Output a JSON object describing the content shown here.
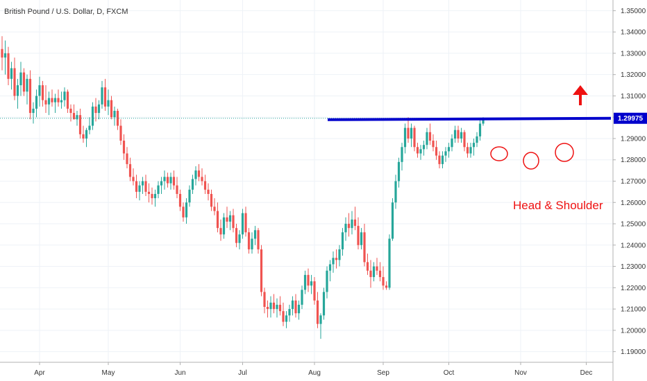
{
  "title": "British Pound / U.S. Dollar, D, FXCM",
  "annotation": "Head & Shoulder",
  "price_tag": "1.29975",
  "colors": {
    "up": "#26a69a",
    "down": "#ef5350",
    "grid": "#eef2f7",
    "neckline": "#0000cc",
    "annotation": "#ee1111",
    "price_tag_bg": "#0000cc",
    "axis_text": "#333333"
  },
  "chart_data": {
    "type": "candlestick",
    "title": "British Pound / U.S. Dollar, D, FXCM",
    "ylim": [
      1.185,
      1.355
    ],
    "y_ticks": [
      "1.19000",
      "1.20000",
      "1.21000",
      "1.22000",
      "1.23000",
      "1.24000",
      "1.25000",
      "1.26000",
      "1.27000",
      "1.28000",
      "1.29000",
      "1.30000",
      "1.31000",
      "1.32000",
      "1.33000",
      "1.34000",
      "1.35000"
    ],
    "x_ticks": [
      {
        "label": "Apr",
        "index": 12
      },
      {
        "label": "May",
        "index": 34
      },
      {
        "label": "Jun",
        "index": 57
      },
      {
        "label": "Jul",
        "index": 77
      },
      {
        "label": "Aug",
        "index": 100
      },
      {
        "label": "Sep",
        "index": 122
      },
      {
        "label": "Oct",
        "index": 143
      },
      {
        "label": "Nov",
        "index": 166
      },
      {
        "label": "Dec",
        "index": 187
      }
    ],
    "candles": [
      [
        1.332,
        1.338,
        1.322,
        1.328
      ],
      [
        1.328,
        1.336,
        1.32,
        1.33
      ],
      [
        1.33,
        1.333,
        1.315,
        1.318
      ],
      [
        1.318,
        1.326,
        1.313,
        1.323
      ],
      [
        1.323,
        1.328,
        1.308,
        1.31
      ],
      [
        1.31,
        1.318,
        1.304,
        1.315
      ],
      [
        1.315,
        1.326,
        1.31,
        1.321
      ],
      [
        1.321,
        1.323,
        1.31,
        1.312
      ],
      [
        1.312,
        1.32,
        1.306,
        1.318
      ],
      [
        1.318,
        1.322,
        1.299,
        1.302
      ],
      [
        1.302,
        1.307,
        1.297,
        1.304
      ],
      [
        1.304,
        1.313,
        1.3,
        1.31
      ],
      [
        1.31,
        1.319,
        1.305,
        1.315
      ],
      [
        1.315,
        1.317,
        1.305,
        1.308
      ],
      [
        1.308,
        1.315,
        1.302,
        1.306
      ],
      [
        1.306,
        1.312,
        1.301,
        1.309
      ],
      [
        1.309,
        1.313,
        1.305,
        1.307
      ],
      [
        1.307,
        1.311,
        1.302,
        1.309
      ],
      [
        1.309,
        1.313,
        1.305,
        1.307
      ],
      [
        1.307,
        1.312,
        1.304,
        1.308
      ],
      [
        1.308,
        1.314,
        1.305,
        1.312
      ],
      [
        1.312,
        1.313,
        1.302,
        1.304
      ],
      [
        1.304,
        1.306,
        1.298,
        1.302
      ],
      [
        1.302,
        1.306,
        1.299,
        1.299
      ],
      [
        1.299,
        1.303,
        1.296,
        1.301
      ],
      [
        1.301,
        1.304,
        1.29,
        1.292
      ],
      [
        1.292,
        1.296,
        1.288,
        1.29
      ],
      [
        1.29,
        1.295,
        1.286,
        1.294
      ],
      [
        1.294,
        1.3,
        1.292,
        1.296
      ],
      [
        1.296,
        1.307,
        1.294,
        1.305
      ],
      [
        1.305,
        1.309,
        1.298,
        1.302
      ],
      [
        1.302,
        1.308,
        1.299,
        1.306
      ],
      [
        1.306,
        1.317,
        1.304,
        1.314
      ],
      [
        1.314,
        1.318,
        1.303,
        1.305
      ],
      [
        1.305,
        1.313,
        1.301,
        1.308
      ],
      [
        1.308,
        1.31,
        1.299,
        1.3
      ],
      [
        1.3,
        1.305,
        1.296,
        1.303
      ],
      [
        1.303,
        1.304,
        1.294,
        1.296
      ],
      [
        1.296,
        1.299,
        1.287,
        1.289
      ],
      [
        1.289,
        1.292,
        1.28,
        1.283
      ],
      [
        1.283,
        1.286,
        1.276,
        1.278
      ],
      [
        1.278,
        1.281,
        1.27,
        1.272
      ],
      [
        1.272,
        1.276,
        1.268,
        1.27
      ],
      [
        1.27,
        1.273,
        1.262,
        1.265
      ],
      [
        1.265,
        1.27,
        1.261,
        1.268
      ],
      [
        1.268,
        1.272,
        1.264,
        1.27
      ],
      [
        1.27,
        1.273,
        1.263,
        1.265
      ],
      [
        1.265,
        1.269,
        1.26,
        1.264
      ],
      [
        1.264,
        1.267,
        1.259,
        1.262
      ],
      [
        1.262,
        1.266,
        1.258,
        1.264
      ],
      [
        1.264,
        1.27,
        1.262,
        1.268
      ],
      [
        1.268,
        1.272,
        1.264,
        1.27
      ],
      [
        1.27,
        1.275,
        1.266,
        1.272
      ],
      [
        1.272,
        1.274,
        1.267,
        1.269
      ],
      [
        1.269,
        1.274,
        1.266,
        1.272
      ],
      [
        1.272,
        1.275,
        1.266,
        1.268
      ],
      [
        1.268,
        1.272,
        1.262,
        1.264
      ],
      [
        1.264,
        1.266,
        1.256,
        1.258
      ],
      [
        1.258,
        1.26,
        1.251,
        1.253
      ],
      [
        1.253,
        1.262,
        1.25,
        1.26
      ],
      [
        1.26,
        1.268,
        1.258,
        1.266
      ],
      [
        1.266,
        1.273,
        1.264,
        1.271
      ],
      [
        1.271,
        1.277,
        1.268,
        1.275
      ],
      [
        1.275,
        1.278,
        1.27,
        1.272
      ],
      [
        1.272,
        1.276,
        1.268,
        1.27
      ],
      [
        1.27,
        1.273,
        1.264,
        1.266
      ],
      [
        1.266,
        1.269,
        1.261,
        1.264
      ],
      [
        1.264,
        1.266,
        1.256,
        1.258
      ],
      [
        1.258,
        1.262,
        1.254,
        1.256
      ],
      [
        1.256,
        1.26,
        1.246,
        1.248
      ],
      [
        1.248,
        1.252,
        1.242,
        1.245
      ],
      [
        1.245,
        1.255,
        1.243,
        1.253
      ],
      [
        1.253,
        1.258,
        1.248,
        1.251
      ],
      [
        1.251,
        1.256,
        1.247,
        1.254
      ],
      [
        1.254,
        1.257,
        1.246,
        1.248
      ],
      [
        1.248,
        1.25,
        1.239,
        1.241
      ],
      [
        1.241,
        1.247,
        1.238,
        1.245
      ],
      [
        1.245,
        1.257,
        1.243,
        1.255
      ],
      [
        1.255,
        1.258,
        1.244,
        1.246
      ],
      [
        1.246,
        1.248,
        1.236,
        1.238
      ],
      [
        1.238,
        1.246,
        1.236,
        1.243
      ],
      [
        1.243,
        1.249,
        1.24,
        1.247
      ],
      [
        1.247,
        1.248,
        1.236,
        1.238
      ],
      [
        1.238,
        1.24,
        1.216,
        1.218
      ],
      [
        1.218,
        1.22,
        1.208,
        1.211
      ],
      [
        1.211,
        1.214,
        1.206,
        1.21
      ],
      [
        1.21,
        1.216,
        1.206,
        1.213
      ],
      [
        1.213,
        1.217,
        1.208,
        1.21
      ],
      [
        1.21,
        1.215,
        1.206,
        1.212
      ],
      [
        1.212,
        1.216,
        1.207,
        1.209
      ],
      [
        1.209,
        1.213,
        1.202,
        1.204
      ],
      [
        1.204,
        1.209,
        1.201,
        1.207
      ],
      [
        1.207,
        1.212,
        1.204,
        1.21
      ],
      [
        1.21,
        1.216,
        1.207,
        1.214
      ],
      [
        1.214,
        1.217,
        1.206,
        1.208
      ],
      [
        1.208,
        1.214,
        1.205,
        1.212
      ],
      [
        1.212,
        1.221,
        1.21,
        1.219
      ],
      [
        1.219,
        1.228,
        1.217,
        1.226
      ],
      [
        1.226,
        1.229,
        1.218,
        1.221
      ],
      [
        1.221,
        1.226,
        1.217,
        1.223
      ],
      [
        1.223,
        1.225,
        1.212,
        1.214
      ],
      [
        1.214,
        1.218,
        1.201,
        1.203
      ],
      [
        1.203,
        1.208,
        1.196,
        1.207
      ],
      [
        1.207,
        1.22,
        1.205,
        1.218
      ],
      [
        1.218,
        1.23,
        1.215,
        1.228
      ],
      [
        1.228,
        1.233,
        1.223,
        1.231
      ],
      [
        1.231,
        1.237,
        1.227,
        1.234
      ],
      [
        1.234,
        1.238,
        1.229,
        1.233
      ],
      [
        1.233,
        1.24,
        1.23,
        1.238
      ],
      [
        1.238,
        1.248,
        1.235,
        1.246
      ],
      [
        1.246,
        1.253,
        1.242,
        1.25
      ],
      [
        1.25,
        1.255,
        1.244,
        1.248
      ],
      [
        1.248,
        1.256,
        1.245,
        1.252
      ],
      [
        1.252,
        1.258,
        1.247,
        1.249
      ],
      [
        1.249,
        1.253,
        1.238,
        1.24
      ],
      [
        1.24,
        1.248,
        1.238,
        1.246
      ],
      [
        1.246,
        1.25,
        1.23,
        1.232
      ],
      [
        1.232,
        1.236,
        1.226,
        1.228
      ],
      [
        1.228,
        1.233,
        1.22,
        1.225
      ],
      [
        1.225,
        1.232,
        1.223,
        1.23
      ],
      [
        1.23,
        1.234,
        1.226,
        1.228
      ],
      [
        1.228,
        1.232,
        1.223,
        1.225
      ],
      [
        1.225,
        1.23,
        1.219,
        1.221
      ],
      [
        1.221,
        1.223,
        1.219,
        1.22
      ],
      [
        1.22,
        1.245,
        1.219,
        1.243
      ],
      [
        1.243,
        1.262,
        1.242,
        1.26
      ],
      [
        1.26,
        1.273,
        1.257,
        1.27
      ],
      [
        1.27,
        1.281,
        1.267,
        1.279
      ],
      [
        1.279,
        1.288,
        1.275,
        1.286
      ],
      [
        1.286,
        1.297,
        1.283,
        1.295
      ],
      [
        1.295,
        1.3,
        1.288,
        1.29
      ],
      [
        1.29,
        1.297,
        1.286,
        1.295
      ],
      [
        1.295,
        1.296,
        1.284,
        1.286
      ],
      [
        1.286,
        1.288,
        1.281,
        1.283
      ],
      [
        1.283,
        1.287,
        1.28,
        1.285
      ],
      [
        1.285,
        1.289,
        1.282,
        1.287
      ],
      [
        1.287,
        1.295,
        1.285,
        1.293
      ],
      [
        1.293,
        1.297,
        1.287,
        1.289
      ],
      [
        1.289,
        1.292,
        1.284,
        1.286
      ],
      [
        1.286,
        1.289,
        1.28,
        1.282
      ],
      [
        1.282,
        1.284,
        1.276,
        1.278
      ],
      [
        1.278,
        1.284,
        1.276,
        1.282
      ],
      [
        1.282,
        1.286,
        1.279,
        1.284
      ],
      [
        1.284,
        1.288,
        1.281,
        1.286
      ],
      [
        1.286,
        1.292,
        1.284,
        1.29
      ],
      [
        1.29,
        1.296,
        1.288,
        1.294
      ],
      [
        1.294,
        1.296,
        1.288,
        1.29
      ],
      [
        1.29,
        1.295,
        1.288,
        1.293
      ],
      [
        1.293,
        1.294,
        1.284,
        1.286
      ],
      [
        1.286,
        1.288,
        1.281,
        1.283
      ],
      [
        1.283,
        1.288,
        1.281,
        1.286
      ],
      [
        1.286,
        1.29,
        1.282,
        1.288
      ],
      [
        1.288,
        1.293,
        1.286,
        1.291
      ],
      [
        1.291,
        1.299,
        1.289,
        1.297
      ],
      [
        1.297,
        1.3,
        1.296,
        1.2995
      ]
    ]
  }
}
